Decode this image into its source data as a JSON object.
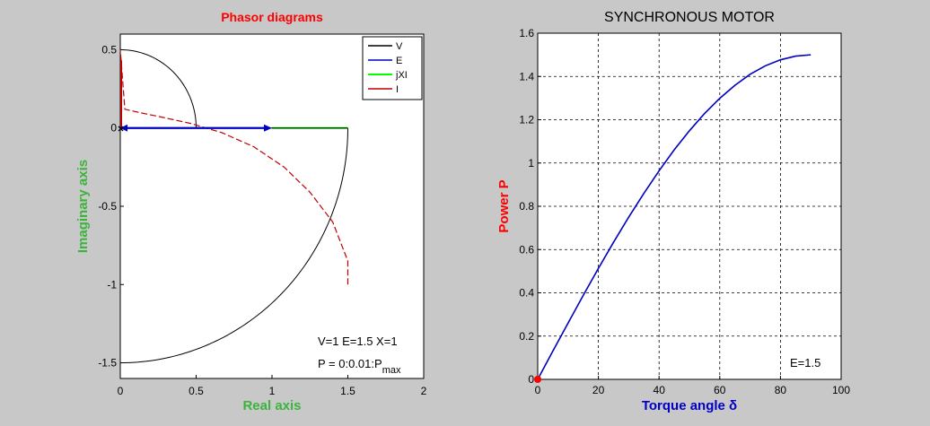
{
  "colors": {
    "figure_bg": "#c8c8c8",
    "axes_bg": "#ffffff",
    "grid": "#000000",
    "left_title": "#ff0000",
    "left_axis_label": "#3cb43c",
    "right_ylabel": "#ff0000",
    "right_xlabel": "#0000c8",
    "V": "#000000",
    "E": "#0000c0",
    "jXI": "#00ff00",
    "I": "#c00000",
    "power_curve": "#0000c0"
  },
  "chart_data": [
    {
      "type": "line",
      "title": "Phasor diagrams",
      "xlabel": "Real axis",
      "ylabel": "Imaginary axis",
      "xlim": [
        0,
        2
      ],
      "ylim": [
        -1.6,
        0.6
      ],
      "xticks": [
        "0",
        "0.5",
        "1",
        "1.5",
        "2"
      ],
      "yticks": [
        "-1.5",
        "-1",
        "-0.5",
        "0",
        "0.5"
      ],
      "grid": false,
      "legend_position": "top-right",
      "legend": [
        {
          "label": "V",
          "color": "#000000"
        },
        {
          "label": "E",
          "color": "#0000c0"
        },
        {
          "label": "jXI",
          "color": "#00ff00"
        },
        {
          "label": "I",
          "color": "#c00000"
        }
      ],
      "phasors": {
        "V": {
          "from": [
            0,
            0
          ],
          "to": [
            1,
            0
          ]
        },
        "E": {
          "from": [
            0,
            0
          ],
          "to": [
            1.5,
            0
          ]
        },
        "jXI": {
          "from": [
            1,
            0
          ],
          "to": [
            1.5,
            0
          ]
        },
        "I": {
          "from": [
            0,
            0
          ],
          "to": [
            0,
            0.5
          ]
        }
      },
      "loci": {
        "E_locus_circle": {
          "center": [
            0,
            0
          ],
          "radius": 1.5,
          "theta_start_deg": 0,
          "theta_end_deg": -90
        },
        "V_locus_circle": {
          "center": [
            0,
            0
          ],
          "radius": 0.5,
          "theta_start_deg": 90,
          "theta_end_deg": 0
        },
        "I_locus": {
          "x": [
            1.5,
            1.5,
            1.4,
            1.25,
            1.08,
            0.88,
            0.67,
            0.46,
            0.27,
            0.12,
            0.03,
            0
          ],
          "y": [
            -1.0,
            -0.85,
            -0.6,
            -0.41,
            -0.25,
            -0.12,
            -0.03,
            0.03,
            0.07,
            0.1,
            0.12,
            0.5
          ]
        }
      },
      "annotations": {
        "params": "V=1  E=1.5  X=1",
        "range_main": "P = 0:0.01:P",
        "range_sub": "max"
      }
    },
    {
      "type": "line",
      "title": "SYNCHRONOUS MOTOR",
      "xlabel": "Torque angle δ",
      "ylabel": "Power P",
      "xlim": [
        0,
        100
      ],
      "ylim": [
        0,
        1.6
      ],
      "xticks": [
        "0",
        "20",
        "40",
        "60",
        "80",
        "100"
      ],
      "yticks": [
        "0",
        "0.2",
        "0.4",
        "0.6",
        "0.8",
        "1",
        "1.2",
        "1.4",
        "1.6"
      ],
      "grid": true,
      "series": [
        {
          "x": [
            0,
            5,
            10,
            15,
            20,
            25,
            30,
            35,
            40,
            45,
            50,
            55,
            60,
            65,
            70,
            75,
            80,
            85,
            90
          ],
          "values": [
            0,
            0.131,
            0.26,
            0.388,
            0.513,
            0.634,
            0.75,
            0.86,
            0.964,
            1.061,
            1.149,
            1.229,
            1.299,
            1.359,
            1.41,
            1.449,
            1.477,
            1.494,
            1.5
          ]
        }
      ],
      "marker": {
        "x": 0,
        "y": 0
      },
      "annotations": {
        "label": "E=1.5"
      }
    }
  ]
}
